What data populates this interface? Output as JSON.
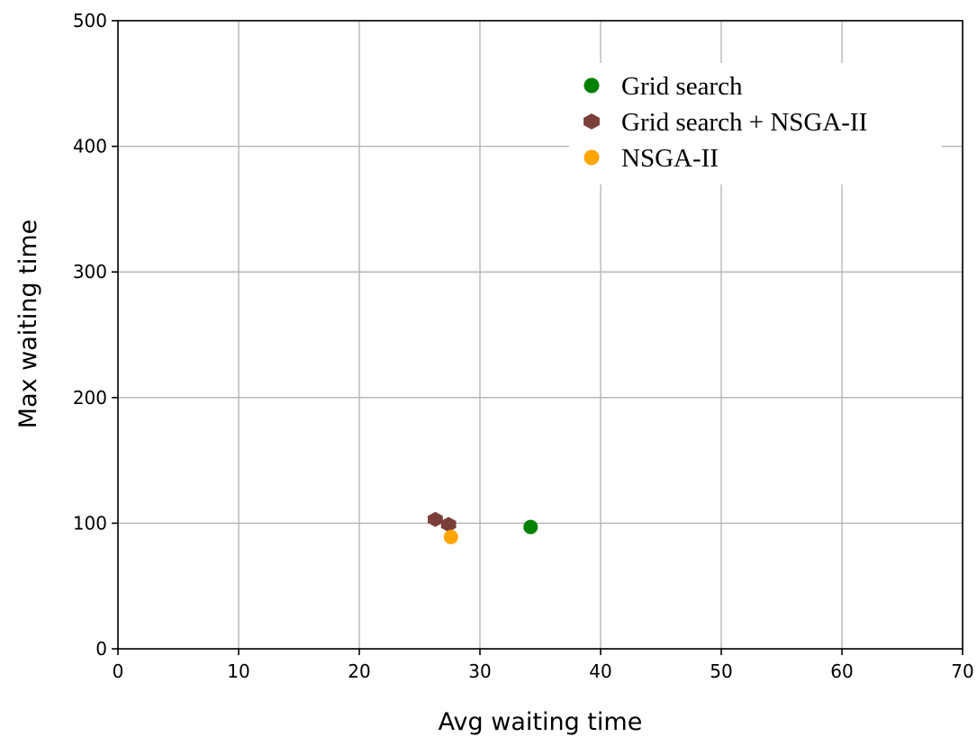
{
  "chart_data": {
    "type": "scatter",
    "xlabel": "Avg waiting time",
    "ylabel": "Max waiting time",
    "xlim": [
      0,
      70
    ],
    "ylim": [
      0,
      500
    ],
    "xticks": [
      0,
      10,
      20,
      30,
      40,
      50,
      60,
      70
    ],
    "yticks": [
      0,
      100,
      200,
      300,
      400,
      500
    ],
    "xtick_labels": [
      "0",
      "10",
      "20",
      "30",
      "40",
      "50",
      "60",
      "70"
    ],
    "ytick_labels": [
      "0",
      "100",
      "200",
      "300",
      "400",
      "500"
    ],
    "grid": true,
    "legend_position": "top-right",
    "series": [
      {
        "name": "Grid search",
        "color": "#008000",
        "marker": "circle",
        "points": [
          {
            "x": 34.2,
            "y": 97
          }
        ]
      },
      {
        "name": "Grid search + NSGA-II",
        "color": "#7b3f3a",
        "marker": "diamond",
        "points": [
          {
            "x": 26.3,
            "y": 103
          },
          {
            "x": 27.4,
            "y": 99
          }
        ]
      },
      {
        "name": "NSGA-II",
        "color": "#ffa500",
        "marker": "circle",
        "points": [
          {
            "x": 27.6,
            "y": 89
          }
        ]
      }
    ]
  }
}
